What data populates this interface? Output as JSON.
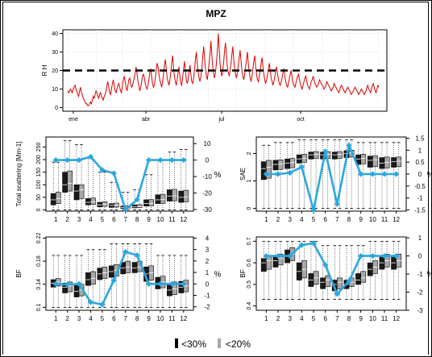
{
  "title": "MPZ",
  "legend": [
    {
      "label": "<30%",
      "color": "#000000"
    },
    {
      "label": "<20%",
      "color": "#a8a8a8"
    }
  ],
  "colors": {
    "line": "#29a8e0",
    "dark_box": "#1a1a1a",
    "light_box": "#a8a8a8",
    "rh_series": "#dd0000"
  },
  "chart_data": [
    {
      "id": "rh",
      "type": "line",
      "ylabel": "R H",
      "ylim": [
        -2,
        42
      ],
      "yticks": [
        0,
        10,
        20,
        30,
        40
      ],
      "xtick_labels": [
        "ene",
        "abr",
        "jul",
        "oct"
      ],
      "threshold": 20,
      "grid": true,
      "series": [
        {
          "values": [
            9,
            8,
            9,
            10,
            9,
            8,
            10,
            11,
            12,
            10,
            9,
            7,
            6,
            9,
            11,
            8,
            7,
            5,
            4,
            3,
            2,
            2,
            1,
            1,
            2,
            3,
            2,
            4,
            6,
            5,
            7,
            9,
            8,
            6,
            5,
            7,
            8,
            6,
            5,
            4,
            6,
            7,
            9,
            12,
            14,
            11,
            8,
            7,
            10,
            13,
            15,
            12,
            9,
            8,
            10,
            12,
            13,
            11,
            9,
            8,
            12,
            15,
            17,
            14,
            11,
            9,
            12,
            15,
            16,
            13,
            11,
            12,
            14,
            16,
            19,
            22,
            18,
            14,
            12,
            9,
            11,
            14,
            17,
            18,
            16,
            13,
            11,
            10,
            12,
            15,
            19,
            21,
            17,
            13,
            11,
            12,
            16,
            20,
            24,
            22,
            18,
            15,
            13,
            11,
            14,
            18,
            23,
            26,
            21,
            16,
            14,
            12,
            15,
            19,
            24,
            28,
            22,
            17,
            14,
            12,
            15,
            19,
            22,
            17,
            13,
            12,
            16,
            21,
            25,
            20,
            15,
            13,
            15,
            19,
            23,
            18,
            14,
            13,
            16,
            20,
            26,
            30,
            24,
            19,
            16,
            14,
            17,
            21,
            27,
            33,
            27,
            21,
            17,
            15,
            19,
            24,
            29,
            36,
            28,
            22,
            18,
            16,
            19,
            24,
            30,
            40,
            32,
            24,
            19,
            17,
            20,
            25,
            31,
            35,
            28,
            22,
            19,
            17,
            20,
            24,
            29,
            33,
            26,
            21,
            18,
            16,
            19,
            23,
            27,
            31,
            25,
            20,
            17,
            15,
            18,
            22,
            26,
            30,
            24,
            19,
            16,
            14,
            17,
            21,
            25,
            28,
            22,
            18,
            15,
            14,
            17,
            20,
            24,
            27,
            22,
            18,
            15,
            13,
            15,
            18,
            21,
            24,
            20,
            16,
            14,
            12,
            14,
            17,
            20,
            22,
            18,
            15,
            13,
            12,
            14,
            16,
            19,
            21,
            17,
            14,
            12,
            11,
            13,
            16,
            18,
            20,
            16,
            13,
            12,
            11,
            13,
            15,
            17,
            18,
            15,
            13,
            11,
            10,
            12,
            14,
            16,
            17,
            14,
            12,
            11,
            10,
            12,
            14,
            15,
            17,
            15,
            13,
            12,
            11,
            12,
            13,
            15,
            14,
            13,
            12,
            11,
            10,
            11,
            12,
            14,
            13,
            12,
            11,
            10,
            9,
            10,
            11,
            13,
            12,
            11,
            10,
            9,
            8,
            9,
            11,
            12,
            11,
            10,
            9,
            8,
            9,
            10,
            11,
            10,
            9,
            8,
            7,
            8,
            9,
            10,
            11,
            10,
            9,
            8,
            7,
            8,
            9,
            10,
            9,
            8,
            7,
            8,
            9,
            11,
            12,
            10,
            9,
            8,
            10,
            12,
            13,
            11,
            9,
            8,
            10,
            12,
            11
          ]
        }
      ]
    },
    {
      "id": "scat",
      "type": "box",
      "ylabel": "Total scattering [Mm-1]",
      "ylim": [
        -5,
        290
      ],
      "yticks": [
        0,
        50,
        100,
        150,
        200,
        250
      ],
      "y2label": "%",
      "y2lim": [
        -31,
        14
      ],
      "y2ticks": [
        -30,
        -20,
        -10,
        0,
        10
      ],
      "categories": [
        "1",
        "2",
        "3",
        "4",
        "5",
        "6",
        "7",
        "8",
        "9",
        "10",
        "11",
        "12"
      ],
      "boxes_dark": [
        [
          0,
          20,
          40,
          65,
          190
        ],
        [
          0,
          70,
          100,
          150,
          275
        ],
        [
          0,
          40,
          75,
          100,
          260
        ],
        [
          0,
          20,
          30,
          45,
          210
        ],
        [
          0,
          12,
          20,
          30,
          150
        ],
        [
          0,
          10,
          18,
          25,
          110
        ],
        [
          0,
          6,
          10,
          15,
          70
        ],
        [
          0,
          8,
          12,
          20,
          80
        ],
        [
          0,
          15,
          25,
          40,
          140
        ],
        [
          0,
          25,
          40,
          60,
          200
        ],
        [
          0,
          35,
          55,
          80,
          230
        ],
        [
          0,
          30,
          50,
          75,
          240
        ]
      ],
      "boxes_light": [
        [
          0,
          25,
          45,
          70,
          190
        ],
        [
          0,
          75,
          105,
          155,
          275
        ],
        [
          0,
          45,
          80,
          100,
          260
        ],
        [
          0,
          22,
          32,
          47,
          200
        ],
        [
          0,
          14,
          22,
          32,
          150
        ],
        [
          0,
          11,
          19,
          27,
          110
        ],
        [
          0,
          7,
          11,
          16,
          70
        ],
        [
          0,
          9,
          13,
          21,
          80
        ],
        [
          0,
          16,
          26,
          41,
          140
        ],
        [
          0,
          26,
          42,
          62,
          200
        ],
        [
          0,
          36,
          56,
          82,
          230
        ],
        [
          0,
          32,
          52,
          78,
          240
        ]
      ],
      "line": [
        0,
        0,
        0,
        2,
        -6,
        -8,
        -30,
        -24,
        0,
        0,
        0,
        0
      ]
    },
    {
      "id": "sae",
      "type": "box",
      "ylabel": "SAE",
      "ylim": [
        -0.1,
        2.6
      ],
      "yticks": [
        0.0,
        1.0,
        2.0
      ],
      "y2label": "%",
      "y2lim": [
        -1.55,
        1.55
      ],
      "y2ticks": [
        -1.5,
        -1,
        -0.5,
        0,
        0.5,
        1,
        1.5
      ],
      "categories": [
        "1",
        "2",
        "3",
        "4",
        "5",
        "6",
        "7",
        "8",
        "9",
        "10",
        "11",
        "12"
      ],
      "boxes_dark": [
        [
          0,
          1.05,
          1.45,
          1.7,
          2.3
        ],
        [
          0,
          1.4,
          1.6,
          1.75,
          2.4
        ],
        [
          0,
          1.45,
          1.65,
          1.8,
          2.4
        ],
        [
          0,
          1.65,
          1.8,
          1.95,
          2.5
        ],
        [
          0,
          1.8,
          1.95,
          2.05,
          2.5
        ],
        [
          0,
          1.8,
          1.95,
          2.05,
          2.5
        ],
        [
          0,
          1.8,
          1.95,
          2.05,
          2.5
        ],
        [
          0,
          1.85,
          2.0,
          2.1,
          2.5
        ],
        [
          0,
          1.6,
          1.8,
          1.95,
          2.4
        ],
        [
          0,
          1.5,
          1.75,
          1.9,
          2.4
        ],
        [
          0,
          1.45,
          1.65,
          1.85,
          2.4
        ],
        [
          0,
          1.5,
          1.7,
          1.85,
          2.4
        ]
      ],
      "boxes_light": [
        [
          0,
          1.1,
          1.5,
          1.75,
          2.3
        ],
        [
          0,
          1.42,
          1.62,
          1.77,
          2.4
        ],
        [
          0,
          1.48,
          1.67,
          1.82,
          2.4
        ],
        [
          0,
          1.68,
          1.82,
          1.97,
          2.5
        ],
        [
          0,
          1.82,
          1.97,
          2.07,
          2.5
        ],
        [
          0,
          1.82,
          1.97,
          2.07,
          2.5
        ],
        [
          0,
          1.82,
          1.97,
          2.07,
          2.5
        ],
        [
          0,
          1.87,
          2.02,
          2.12,
          2.5
        ],
        [
          0,
          1.62,
          1.82,
          1.97,
          2.4
        ],
        [
          0,
          1.52,
          1.77,
          1.92,
          2.4
        ],
        [
          0,
          1.47,
          1.67,
          1.87,
          2.4
        ],
        [
          0,
          1.52,
          1.72,
          1.87,
          2.4
        ]
      ],
      "line": [
        0.0,
        0.0,
        0.05,
        0.3,
        -1.5,
        0.95,
        -1.25,
        1.2,
        0.0,
        0.0,
        0.0,
        0.0
      ]
    },
    {
      "id": "bf1",
      "type": "box",
      "ylabel": "BF",
      "ylim": [
        0.095,
        0.222
      ],
      "yticks": [
        0.1,
        0.14,
        0.18,
        0.22
      ],
      "y2label": "%",
      "y2lim": [
        -2.3,
        4.1
      ],
      "y2ticks": [
        -2,
        -1,
        0,
        1,
        2,
        3,
        4
      ],
      "categories": [
        "1",
        "2",
        "3",
        "4",
        "5",
        "6",
        "7",
        "8",
        "9",
        "10",
        "11",
        "12"
      ],
      "boxes_dark": [
        [
          0.1,
          0.135,
          0.142,
          0.148,
          0.19
        ],
        [
          0.1,
          0.125,
          0.135,
          0.142,
          0.19
        ],
        [
          0.1,
          0.118,
          0.128,
          0.138,
          0.19
        ],
        [
          0.1,
          0.138,
          0.148,
          0.16,
          0.2
        ],
        [
          0.1,
          0.148,
          0.158,
          0.168,
          0.2
        ],
        [
          0.1,
          0.152,
          0.162,
          0.172,
          0.21
        ],
        [
          0.1,
          0.158,
          0.168,
          0.178,
          0.21
        ],
        [
          0.1,
          0.16,
          0.168,
          0.178,
          0.21
        ],
        [
          0.1,
          0.145,
          0.158,
          0.17,
          0.21
        ],
        [
          0.1,
          0.132,
          0.142,
          0.152,
          0.19
        ],
        [
          0.1,
          0.12,
          0.13,
          0.142,
          0.19
        ],
        [
          0.1,
          0.125,
          0.135,
          0.145,
          0.19
        ]
      ],
      "boxes_light": [
        [
          0.1,
          0.137,
          0.144,
          0.15,
          0.19
        ],
        [
          0.1,
          0.127,
          0.137,
          0.144,
          0.19
        ],
        [
          0.1,
          0.12,
          0.13,
          0.14,
          0.19
        ],
        [
          0.1,
          0.14,
          0.15,
          0.162,
          0.2
        ],
        [
          0.1,
          0.15,
          0.16,
          0.17,
          0.2
        ],
        [
          0.1,
          0.154,
          0.164,
          0.174,
          0.21
        ],
        [
          0.1,
          0.16,
          0.17,
          0.18,
          0.21
        ],
        [
          0.1,
          0.162,
          0.17,
          0.18,
          0.21
        ],
        [
          0.1,
          0.147,
          0.16,
          0.172,
          0.21
        ],
        [
          0.1,
          0.134,
          0.144,
          0.154,
          0.19
        ],
        [
          0.1,
          0.122,
          0.132,
          0.144,
          0.19
        ],
        [
          0.1,
          0.127,
          0.137,
          0.147,
          0.19
        ]
      ],
      "line": [
        0.0,
        -0.05,
        0.0,
        -1.6,
        -1.8,
        0.3,
        2.8,
        2.5,
        0.0,
        0.0,
        0.0,
        0.0
      ]
    },
    {
      "id": "bf2",
      "type": "box",
      "ylabel": "BF",
      "ylim": [
        0.38,
        0.72
      ],
      "yticks": [
        0.4,
        0.5,
        0.6,
        0.7
      ],
      "y2label": "%",
      "y2lim": [
        -3,
        1.05
      ],
      "y2ticks": [
        -3,
        -2,
        -1,
        0,
        1
      ],
      "categories": [
        "1",
        "2",
        "3",
        "4",
        "5",
        "6",
        "7",
        "8",
        "9",
        "10",
        "11",
        "12"
      ],
      "boxes_dark": [
        [
          0.43,
          0.56,
          0.6,
          0.62,
          0.7
        ],
        [
          0.43,
          0.58,
          0.61,
          0.63,
          0.7
        ],
        [
          0.43,
          0.6,
          0.63,
          0.66,
          0.7
        ],
        [
          0.43,
          0.52,
          0.56,
          0.6,
          0.7
        ],
        [
          0.43,
          0.49,
          0.52,
          0.55,
          0.7
        ],
        [
          0.43,
          0.48,
          0.51,
          0.53,
          0.68
        ],
        [
          0.43,
          0.47,
          0.5,
          0.52,
          0.68
        ],
        [
          0.43,
          0.48,
          0.5,
          0.52,
          0.68
        ],
        [
          0.43,
          0.5,
          0.52,
          0.55,
          0.68
        ],
        [
          0.43,
          0.54,
          0.57,
          0.6,
          0.7
        ],
        [
          0.43,
          0.57,
          0.6,
          0.63,
          0.7
        ],
        [
          0.43,
          0.57,
          0.6,
          0.63,
          0.7
        ]
      ],
      "boxes_light": [
        [
          0.43,
          0.57,
          0.61,
          0.63,
          0.7
        ],
        [
          0.43,
          0.59,
          0.62,
          0.64,
          0.7
        ],
        [
          0.43,
          0.61,
          0.64,
          0.67,
          0.7
        ],
        [
          0.43,
          0.53,
          0.57,
          0.61,
          0.7
        ],
        [
          0.43,
          0.5,
          0.53,
          0.56,
          0.7
        ],
        [
          0.43,
          0.49,
          0.52,
          0.54,
          0.68
        ],
        [
          0.43,
          0.48,
          0.51,
          0.53,
          0.68
        ],
        [
          0.43,
          0.49,
          0.51,
          0.53,
          0.68
        ],
        [
          0.43,
          0.51,
          0.53,
          0.56,
          0.68
        ],
        [
          0.43,
          0.55,
          0.58,
          0.61,
          0.7
        ],
        [
          0.43,
          0.58,
          0.61,
          0.64,
          0.7
        ],
        [
          0.43,
          0.58,
          0.61,
          0.64,
          0.7
        ]
      ],
      "line": [
        0.0,
        0.0,
        0.0,
        0.6,
        0.7,
        -0.5,
        -2.1,
        -1.4,
        0.0,
        0.0,
        0.0,
        0.0
      ]
    }
  ]
}
